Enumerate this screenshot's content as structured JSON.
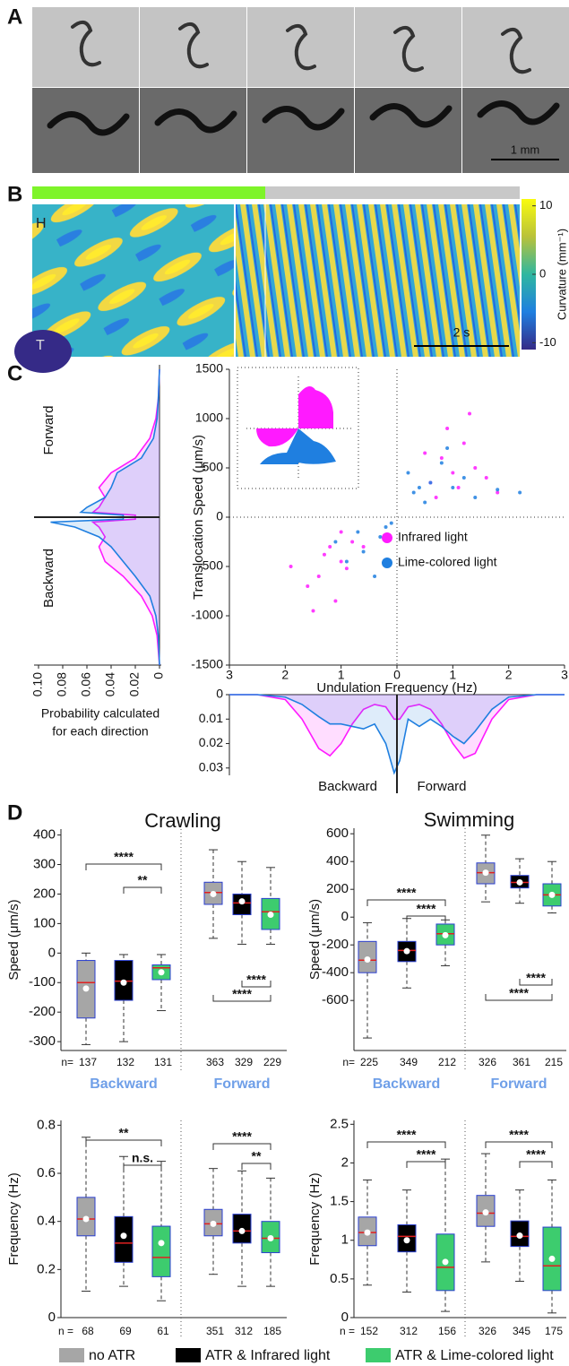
{
  "panel_a": {
    "label": "A",
    "scale_bar": "1 mm"
  },
  "panel_b": {
    "label": "B",
    "head": "H",
    "tail": "T",
    "time_bar": "2 s",
    "colorbar": {
      "label": "Curvature (mm⁻¹)",
      "lim": [
        -11,
        11
      ],
      "ticks": [
        10,
        0,
        -10
      ]
    }
  },
  "panel_c": {
    "label": "C",
    "probability_note": [
      "Probability calculated",
      "for each direction"
    ]
  },
  "panel_d": {
    "label": "D"
  },
  "legend": [
    {
      "name": "no ATR",
      "color": "#a6a6a6"
    },
    {
      "name": "ATR & Infrared light",
      "color": "#000000"
    },
    {
      "name": "ATR & Lime-colored light",
      "color": "#3dcc6e"
    }
  ],
  "chart_data": [
    {
      "type": "scatter",
      "xlabel": "Undulation Frequency (Hz)",
      "ylabel": "Translocation Speed (μm/s)",
      "xlim": [
        -3,
        3
      ],
      "xticks": [
        {
          "value": -3,
          "label": "3"
        },
        {
          "value": -2,
          "label": "2"
        },
        {
          "value": -1,
          "label": "1"
        },
        0,
        1,
        2,
        3
      ],
      "ylim": [
        -1500,
        1500
      ],
      "yticks": [
        -1500,
        -1000,
        -500,
        0,
        500,
        1000,
        1500
      ],
      "series": [
        {
          "name": "Infrared light",
          "color": "#ff1aff",
          "x": [
            -1.2,
            -1.0,
            -1.4,
            -0.8,
            -1.6,
            -1.1,
            -0.9,
            -1.3,
            -1.9,
            -0.6,
            -1.5,
            -1.0,
            0.8,
            1.0,
            1.2,
            0.6,
            1.4,
            0.9,
            1.1,
            1.6,
            0.5,
            1.3,
            0.7,
            1.8
          ],
          "values": [
            -300,
            -450,
            -600,
            -250,
            -700,
            -850,
            -520,
            -380,
            -500,
            -300,
            -950,
            -150,
            600,
            450,
            750,
            350,
            500,
            900,
            300,
            400,
            650,
            1050,
            200,
            250
          ]
        },
        {
          "name": "Lime-colored light",
          "color": "#1f7fe0",
          "x": [
            -0.3,
            -0.6,
            -0.2,
            -0.9,
            -0.4,
            -0.1,
            -1.1,
            -0.7,
            0.3,
            0.6,
            1.0,
            1.4,
            0.2,
            0.8,
            1.2,
            0.5,
            1.8,
            0.9,
            0.4,
            2.2
          ],
          "values": [
            -200,
            -350,
            -100,
            -450,
            -600,
            -60,
            -250,
            -150,
            250,
            350,
            300,
            200,
            450,
            550,
            400,
            150,
            280,
            700,
            300,
            250
          ]
        }
      ]
    },
    {
      "type": "line",
      "annotations": [
        "Forward",
        "Backward"
      ],
      "xlim": [
        0.1,
        0
      ],
      "xticks": [
        {
          "value": 0.1,
          "label": "0.10"
        },
        0.08,
        0.06,
        0.04,
        0.02,
        0
      ],
      "ylim": [
        -1500,
        1500
      ],
      "y": [
        -1500,
        -1200,
        -1000,
        -800,
        -600,
        -450,
        -300,
        -200,
        -100,
        -50,
        -20,
        20,
        50,
        100,
        200,
        300,
        450,
        600,
        800,
        1000,
        1200,
        1500
      ],
      "series": [
        {
          "color": "#ff1aff",
          "values": [
            0,
            0.002,
            0.006,
            0.015,
            0.03,
            0.045,
            0.05,
            0.045,
            0.05,
            0.055,
            0.02,
            0.02,
            0.055,
            0.05,
            0.045,
            0.05,
            0.04,
            0.02,
            0.008,
            0.003,
            0.001,
            0
          ]
        },
        {
          "color": "#1f7fe0",
          "values": [
            0,
            0.001,
            0.003,
            0.008,
            0.02,
            0.03,
            0.04,
            0.05,
            0.07,
            0.09,
            0.03,
            0.03,
            0.065,
            0.06,
            0.045,
            0.04,
            0.035,
            0.015,
            0.005,
            0.002,
            0.001,
            0
          ]
        }
      ]
    },
    {
      "type": "line",
      "annotations": [
        "Backward",
        "Forward"
      ],
      "xlim": [
        -3,
        3
      ],
      "x": [
        -3,
        -2.5,
        -2,
        -1.7,
        -1.4,
        -1.2,
        -1,
        -0.8,
        -0.6,
        -0.4,
        -0.2,
        -0.05,
        0.05,
        0.2,
        0.4,
        0.6,
        0.8,
        1,
        1.2,
        1.4,
        1.7,
        2,
        2.5,
        3
      ],
      "ylim": [
        0,
        0.033
      ],
      "yticks": [
        0,
        0.01,
        0.02,
        0.03
      ],
      "series": [
        {
          "color": "#ff1aff",
          "values": [
            0,
            0,
            0.002,
            0.01,
            0.022,
            0.025,
            0.02,
            0.012,
            0.006,
            0.004,
            0.005,
            0.01,
            0.01,
            0.005,
            0.004,
            0.006,
            0.012,
            0.02,
            0.026,
            0.024,
            0.01,
            0.002,
            0,
            0
          ]
        },
        {
          "color": "#1f7fe0",
          "values": [
            0,
            0,
            0.001,
            0.004,
            0.009,
            0.012,
            0.012,
            0.013,
            0.014,
            0.012,
            0.02,
            0.032,
            0.027,
            0.01,
            0.013,
            0.01,
            0.013,
            0.017,
            0.02,
            0.015,
            0.006,
            0.001,
            0,
            0
          ]
        }
      ]
    },
    {
      "type": "box",
      "title": "Crawling",
      "ylabel": "Speed (μm/s)",
      "ylim": [
        -330,
        420
      ],
      "yticks": [
        -300,
        -200,
        -100,
        0,
        100,
        200,
        300,
        400
      ],
      "group_labels": [
        "Backward",
        "Forward"
      ],
      "n_prefix": "n=",
      "n": [
        137,
        132,
        131,
        363,
        329,
        229
      ],
      "significance": [
        "****",
        "**",
        "****",
        "****"
      ],
      "boxes": [
        {
          "min": -310,
          "q1": -220,
          "median": -100,
          "q3": -25,
          "max": 0,
          "mean": -120
        },
        {
          "min": -300,
          "q1": -160,
          "median": -95,
          "q3": -25,
          "max": -5,
          "mean": -100
        },
        {
          "min": -195,
          "q1": -90,
          "median": -50,
          "q3": -40,
          "max": -5,
          "mean": -65
        },
        {
          "min": 50,
          "q1": 165,
          "median": 205,
          "q3": 240,
          "max": 350,
          "mean": 200
        },
        {
          "min": 30,
          "q1": 130,
          "median": 170,
          "q3": 200,
          "max": 310,
          "mean": 175
        },
        {
          "min": 30,
          "q1": 80,
          "median": 140,
          "q3": 185,
          "max": 290,
          "mean": 130
        }
      ]
    },
    {
      "type": "box",
      "title": "Swimming",
      "ylabel": "Speed (μm/s)",
      "ylim": [
        -960,
        640
      ],
      "yticks": [
        -600,
        -400,
        -200,
        0,
        200,
        400,
        600
      ],
      "group_labels": [
        "Backward",
        "Forward"
      ],
      "n_prefix": "n=",
      "n": [
        225,
        349,
        212,
        326,
        361,
        215
      ],
      "significance": [
        "****",
        "****",
        "****",
        "****"
      ],
      "boxes": [
        {
          "min": -870,
          "q1": -400,
          "median": -310,
          "q3": -175,
          "max": -40,
          "mean": -305
        },
        {
          "min": -510,
          "q1": -320,
          "median": -240,
          "q3": -175,
          "max": -10,
          "mean": -245
        },
        {
          "min": -350,
          "q1": -200,
          "median": -120,
          "q3": -50,
          "max": -20,
          "mean": -130
        },
        {
          "min": 110,
          "q1": 240,
          "median": 320,
          "q3": 390,
          "max": 590,
          "mean": 320
        },
        {
          "min": 100,
          "q1": 210,
          "median": 250,
          "q3": 300,
          "max": 420,
          "mean": 250
        },
        {
          "min": 30,
          "q1": 80,
          "median": 160,
          "q3": 240,
          "max": 400,
          "mean": 160
        }
      ]
    },
    {
      "type": "box",
      "ylabel": "Frequency (Hz)",
      "ylim": [
        0,
        0.82
      ],
      "yticks": [
        0,
        0.2,
        0.4,
        0.6,
        0.8
      ],
      "n_prefix": "n =",
      "n": [
        68,
        69,
        61,
        351,
        312,
        185
      ],
      "significance": [
        "**",
        "n.s.",
        "****",
        "**"
      ],
      "boxes": [
        {
          "min": 0.11,
          "q1": 0.34,
          "median": 0.41,
          "q3": 0.5,
          "max": 0.75,
          "mean": 0.41
        },
        {
          "min": 0.13,
          "q1": 0.23,
          "median": 0.31,
          "q3": 0.42,
          "max": 0.67,
          "mean": 0.34
        },
        {
          "min": 0.07,
          "q1": 0.17,
          "median": 0.25,
          "q3": 0.38,
          "max": 0.65,
          "mean": 0.31
        },
        {
          "min": 0.18,
          "q1": 0.34,
          "median": 0.39,
          "q3": 0.45,
          "max": 0.62,
          "mean": 0.39
        },
        {
          "min": 0.13,
          "q1": 0.31,
          "median": 0.36,
          "q3": 0.43,
          "max": 0.61,
          "mean": 0.36
        },
        {
          "min": 0.13,
          "q1": 0.27,
          "median": 0.33,
          "q3": 0.4,
          "max": 0.58,
          "mean": 0.33
        }
      ]
    },
    {
      "type": "box",
      "ylabel": "Frequency (Hz)",
      "ylim": [
        0,
        2.55
      ],
      "yticks": [
        0,
        0.5,
        1,
        1.5,
        2,
        2.5
      ],
      "n_prefix": "n =",
      "n": [
        152,
        312,
        156,
        326,
        345,
        175
      ],
      "significance": [
        "****",
        "****",
        "****",
        "****"
      ],
      "boxes": [
        {
          "min": 0.42,
          "q1": 0.93,
          "median": 1.1,
          "q3": 1.3,
          "max": 1.78,
          "mean": 1.1
        },
        {
          "min": 0.33,
          "q1": 0.85,
          "median": 1.05,
          "q3": 1.2,
          "max": 1.65,
          "mean": 1.0
        },
        {
          "min": 0.08,
          "q1": 0.35,
          "median": 0.65,
          "q3": 1.08,
          "max": 2.05,
          "mean": 0.72
        },
        {
          "min": 0.72,
          "q1": 1.18,
          "median": 1.35,
          "q3": 1.58,
          "max": 2.12,
          "mean": 1.36
        },
        {
          "min": 0.47,
          "q1": 0.92,
          "median": 1.05,
          "q3": 1.25,
          "max": 1.65,
          "mean": 1.06
        },
        {
          "min": 0.06,
          "q1": 0.35,
          "median": 0.67,
          "q3": 1.17,
          "max": 1.78,
          "mean": 0.76
        }
      ]
    }
  ]
}
